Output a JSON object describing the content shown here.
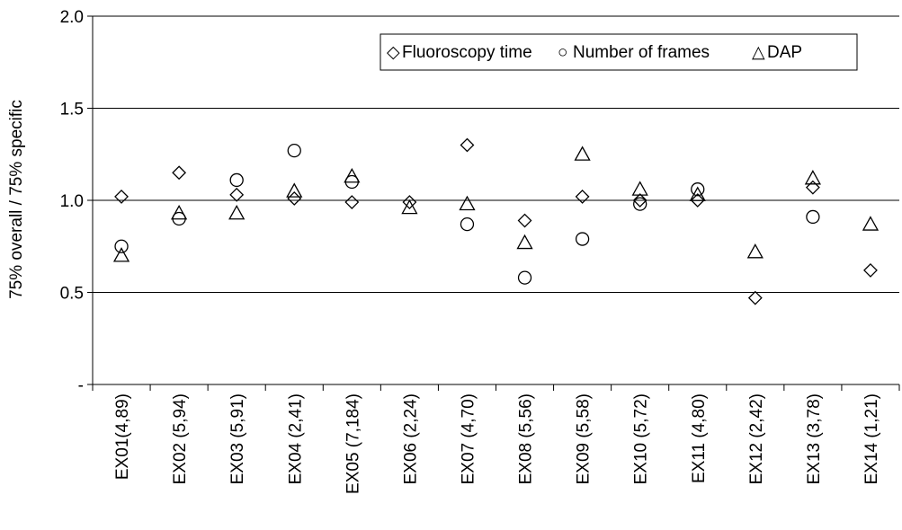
{
  "chart_data": {
    "type": "scatter",
    "title": "",
    "xlabel": "",
    "ylabel": "75% overall / 75% specific",
    "ylim": [
      0,
      2
    ],
    "y_ticks": [
      {
        "value": 0,
        "label": "-"
      },
      {
        "value": 0.5,
        "label": "0.5"
      },
      {
        "value": 1,
        "label": "1.0"
      },
      {
        "value": 1.5,
        "label": "1.5"
      },
      {
        "value": 2,
        "label": "2.0"
      }
    ],
    "grid": "horizontal",
    "legend_position": "top-right",
    "categories": [
      "EX01(4,89)",
      "EX02 (5,94)",
      "EX03 (5,91)",
      "EX04 (2,41)",
      "EX05 (7,184)",
      "EX06 (2,24)",
      "EX07 (4,70)",
      "EX08 (5,56)",
      "EX09 (5,58)",
      "EX10 (5,72)",
      "EX11 (4,80)",
      "EX12 (2,42)",
      "EX13 (3,78)",
      "EX14 (1,21)"
    ],
    "series": [
      {
        "name": "Fluoroscopy time",
        "marker": "diamond",
        "symbol": "◇",
        "values": [
          1.02,
          1.15,
          1.03,
          1.01,
          0.99,
          0.99,
          1.3,
          0.89,
          1.02,
          1.0,
          1.0,
          0.47,
          1.07,
          0.62
        ]
      },
      {
        "name": "Number of frames",
        "marker": "circle",
        "symbol": "○",
        "values": [
          0.75,
          0.9,
          1.11,
          1.27,
          1.1,
          null,
          0.87,
          0.58,
          0.79,
          0.98,
          1.06,
          null,
          0.91,
          null
        ]
      },
      {
        "name": "DAP",
        "marker": "triangle",
        "symbol": "△",
        "values": [
          0.7,
          0.93,
          0.93,
          1.05,
          1.13,
          0.96,
          0.98,
          0.77,
          1.25,
          1.06,
          1.03,
          0.72,
          1.12,
          0.87
        ]
      }
    ]
  }
}
